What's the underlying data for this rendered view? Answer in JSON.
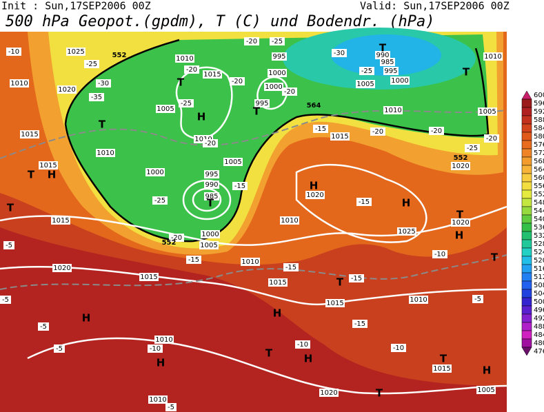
{
  "header": {
    "init": "Init : Sun,17SEP2006 00Z",
    "valid": "Valid: Sun,17SEP2006 00Z",
    "title": "500 hPa Geopot.(gpdm), T (C) und Bodendr. (hPa)"
  },
  "map": {
    "isobar_labels": [
      "1025",
      "1010",
      "1015",
      "995",
      "1000",
      "1000",
      "995",
      "990",
      "985",
      "995",
      "1000",
      "1005",
      "1010",
      "1010",
      "1005",
      "1020",
      "1010",
      "1005",
      "1010",
      "1005",
      "1000",
      "995",
      "990",
      "985",
      "1000",
      "1005",
      "1010",
      "1015",
      "1015",
      "1015",
      "1020",
      "1015",
      "1020",
      "1020",
      "1025",
      "1010",
      "1010",
      "1015",
      "1015",
      "1020",
      "1010",
      "1015",
      "1010",
      "1015",
      "1020",
      "1010",
      "1005"
    ],
    "temperature_labels": [
      "-10",
      "-25",
      "-30",
      "-35",
      "-20",
      "-25",
      "-20",
      "-20",
      "-20",
      "-25",
      "-30",
      "-25",
      "-20",
      "-15",
      "-20",
      "-20",
      "-25",
      "-20",
      "-15",
      "-25",
      "-20",
      "-15",
      "-15",
      "-15",
      "-15",
      "-15",
      "-10",
      "-10",
      "-10",
      "-10",
      "-5",
      "-5",
      "-5",
      "-5",
      "-5",
      "-5"
    ],
    "height_labels": [
      "552",
      "564",
      "552",
      "552"
    ],
    "centers": [
      "T",
      "H",
      "T",
      "H",
      "T",
      "T",
      "T",
      "T",
      "T",
      "T",
      "H",
      "H",
      "T",
      "H",
      "T",
      "T",
      "H",
      "H",
      "H",
      "T",
      "H",
      "T",
      "T",
      "H"
    ]
  },
  "colorbar": {
    "levels": [
      600,
      596,
      592,
      588,
      584,
      580,
      576,
      572,
      568,
      564,
      560,
      556,
      552,
      548,
      544,
      540,
      536,
      532,
      528,
      524,
      520,
      516,
      512,
      508,
      504,
      500,
      496,
      492,
      488,
      484,
      480,
      476
    ],
    "colors": [
      "#c8206a",
      "#9b1a1a",
      "#b02020",
      "#c4301e",
      "#d4441c",
      "#e0581a",
      "#e86c1e",
      "#ee8426",
      "#f29c2e",
      "#f6b438",
      "#f8cc40",
      "#f2de40",
      "#e4ea40",
      "#c4e640",
      "#96da40",
      "#62cc40",
      "#34c048",
      "#22c070",
      "#22c89a",
      "#22d0c4",
      "#22c0e8",
      "#22a0f2",
      "#2280f2",
      "#2260f0",
      "#2242e0",
      "#3424d0",
      "#5a20d0",
      "#8420d0",
      "#b020c8",
      "#d020c0",
      "#a010a0",
      "#6a106a"
    ]
  }
}
